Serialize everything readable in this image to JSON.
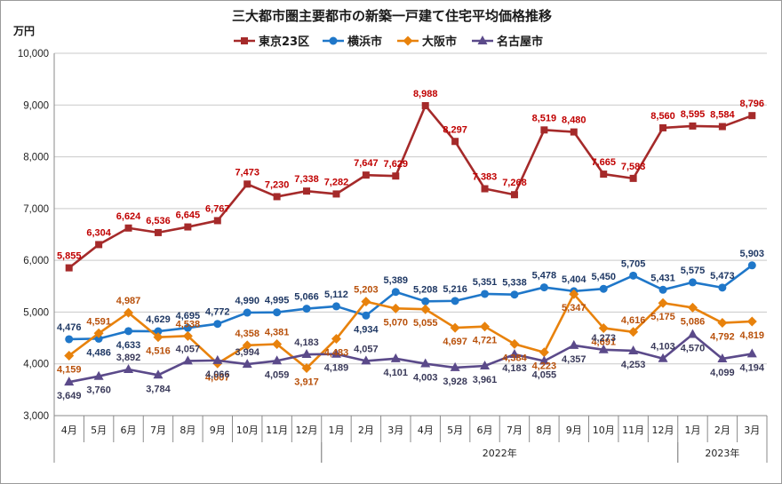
{
  "chart_data": {
    "type": "line",
    "title": "三大都市圏主要都市の新築一戸建て住宅平均価格推移",
    "ylabel": "万円",
    "ylim": [
      3000,
      10000
    ],
    "yticks": [
      "3,000",
      "4,000",
      "5,000",
      "6,000",
      "7,000",
      "8,000",
      "9,000",
      "10,000"
    ],
    "grid": true,
    "legend_position": "top",
    "categories": [
      "4月",
      "5月",
      "6月",
      "7月",
      "8月",
      "9月",
      "10月",
      "11月",
      "12月",
      "1月",
      "2月",
      "3月",
      "4月",
      "5月",
      "6月",
      "7月",
      "8月",
      "9月",
      "10月",
      "11月",
      "12月",
      "1月",
      "2月",
      "3月"
    ],
    "year_groups": [
      {
        "label": "",
        "start": 0,
        "end": 8
      },
      {
        "label": "2022年",
        "start": 9,
        "end": 20
      },
      {
        "label": "2023年",
        "start": 21,
        "end": 23
      }
    ],
    "series": [
      {
        "name": "東京23区",
        "color": "#a52a2a",
        "label_color": "#c00000",
        "marker": "square",
        "values": [
          5855,
          6304,
          6624,
          6536,
          6645,
          6767,
          7473,
          7230,
          7338,
          7282,
          7647,
          7629,
          8988,
          8297,
          7383,
          7268,
          8519,
          8480,
          7665,
          7583,
          8560,
          8595,
          8584,
          8796
        ],
        "labels": [
          "5,855",
          "6,304",
          "6,624",
          "6,536",
          "6,645",
          "6,767",
          "7,473",
          "7,230",
          "7,338",
          "7,282",
          "7,647",
          "7,629",
          "8,988",
          "8,297",
          "7,383",
          "7,268",
          "8,519",
          "8,480",
          "7,665",
          "7,583",
          "8,560",
          "8,595",
          "8,584",
          "8,796"
        ]
      },
      {
        "name": "横浜市",
        "color": "#1f77c9",
        "label_color": "#1f3864",
        "marker": "circle",
        "values": [
          4476,
          4486,
          4633,
          4629,
          4695,
          4772,
          4990,
          4995,
          5066,
          5112,
          4934,
          5389,
          5208,
          5216,
          5351,
          5338,
          5478,
          5404,
          5450,
          5705,
          5431,
          5575,
          5473,
          5903
        ],
        "labels": [
          "4,476",
          "4,486",
          "4,633",
          "4,629",
          "4,695",
          "4,772",
          "4,990",
          "4,995",
          "5,066",
          "5,112",
          "4,934",
          "5,389",
          "5,208",
          "5,216",
          "5,351",
          "5,338",
          "5,478",
          "5,404",
          "5,450",
          "5,705",
          "5,431",
          "5,575",
          "5,473",
          "5,903"
        ]
      },
      {
        "name": "大阪市",
        "color": "#e8820c",
        "label_color": "#b8500a",
        "marker": "diamond",
        "values": [
          4159,
          4591,
          4987,
          4516,
          4538,
          4007,
          4358,
          4381,
          3917,
          4483,
          5203,
          5070,
          5055,
          4697,
          4721,
          4384,
          4223,
          5347,
          4691,
          4616,
          5175,
          5086,
          4792,
          4819
        ],
        "labels": [
          "4,159",
          "4,591",
          "4,987",
          "4,516",
          "4,538",
          "4,007",
          "4,358",
          "4,381",
          "3,917",
          "4,483",
          "5,203",
          "5,070",
          "5,055",
          "4,697",
          "4,721",
          "4,384",
          "4,223",
          "5,347",
          "4,691",
          "4,616",
          "5,175",
          "5,086",
          "4,792",
          "4,819"
        ]
      },
      {
        "name": "名古屋市",
        "color": "#5b4a8a",
        "label_color": "#3a3a5a",
        "marker": "triangle",
        "values": [
          3649,
          3760,
          3892,
          3784,
          4057,
          4066,
          3994,
          4059,
          4183,
          4189,
          4057,
          4101,
          4003,
          3928,
          3961,
          4183,
          4055,
          4357,
          4273,
          4253,
          4103,
          4570,
          4099,
          4194
        ],
        "labels": [
          "3,649",
          "3,760",
          "3,892",
          "3,784",
          "4,057",
          "4,066",
          "3,994",
          "4,059",
          "4,183",
          "4,189",
          "4,057",
          "4,101",
          "4,003",
          "3,928",
          "3,961",
          "4,183",
          "4,055",
          "4,357",
          "4,273",
          "4,253",
          "4,103",
          "4,570",
          "4,099",
          "4,194"
        ]
      }
    ]
  }
}
